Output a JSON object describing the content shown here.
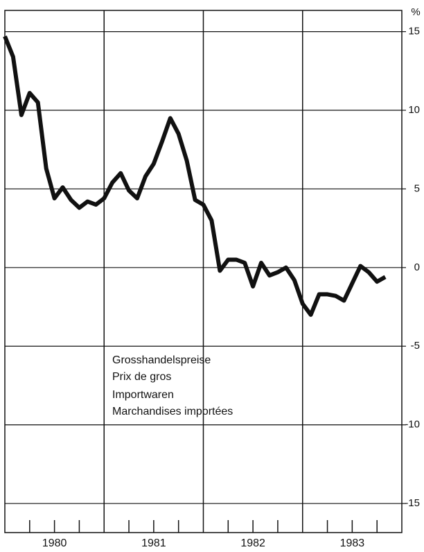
{
  "chart_data": {
    "type": "line",
    "annotations": [
      "Grosshandelspreise",
      "Prix de gros",
      "Importwaren",
      "Marchandises importées"
    ],
    "y_unit": "%",
    "x": [
      1980.0,
      1980.083,
      1980.167,
      1980.25,
      1980.333,
      1980.417,
      1980.5,
      1980.583,
      1980.667,
      1980.75,
      1980.833,
      1980.917,
      1981.0,
      1981.083,
      1981.167,
      1981.25,
      1981.333,
      1981.417,
      1981.5,
      1981.583,
      1981.667,
      1981.75,
      1981.833,
      1981.917,
      1982.0,
      1982.083,
      1982.167,
      1982.25,
      1982.333,
      1982.417,
      1982.5,
      1982.583,
      1982.667,
      1982.75,
      1982.833,
      1982.917,
      1983.0,
      1983.083,
      1983.167,
      1983.25,
      1983.333,
      1983.417,
      1983.5,
      1983.583,
      1983.667,
      1983.75,
      1983.833
    ],
    "series": [
      {
        "color": "#111111",
        "values": [
          14.7,
          13.4,
          9.7,
          11.1,
          10.5,
          6.3,
          4.4,
          5.1,
          4.3,
          3.8,
          4.2,
          4.0,
          4.4,
          5.4,
          6.0,
          4.9,
          4.4,
          5.8,
          6.6,
          8.0,
          9.5,
          8.5,
          6.8,
          4.3,
          4.0,
          3.0,
          -0.2,
          0.5,
          0.5,
          0.3,
          -1.2,
          0.3,
          -0.5,
          -0.3,
          0.0,
          -0.8,
          -2.3,
          -3.0,
          -1.7,
          -1.7,
          -1.8,
          -2.1,
          -1.0,
          0.1,
          -0.3,
          -0.9,
          -0.6
        ]
      }
    ],
    "xlim": [
      1980,
      1984
    ],
    "xticks": [
      {
        "value": 1980.5,
        "label": "1980"
      },
      {
        "value": 1981.5,
        "label": "1981"
      },
      {
        "value": 1982.5,
        "label": "1982"
      },
      {
        "value": 1983.5,
        "label": "1983"
      }
    ],
    "xgrid": [
      1981,
      1982,
      1983
    ],
    "xminorticks": [
      1980.25,
      1980.5,
      1980.75,
      1981.25,
      1981.5,
      1981.75,
      1982.25,
      1982.5,
      1982.75,
      1983.25,
      1983.5,
      1983.75
    ],
    "ylim": [
      -16.85,
      16.35
    ],
    "yticks": [
      15,
      10,
      5,
      0,
      -5,
      -10,
      -15
    ],
    "grid": true
  }
}
